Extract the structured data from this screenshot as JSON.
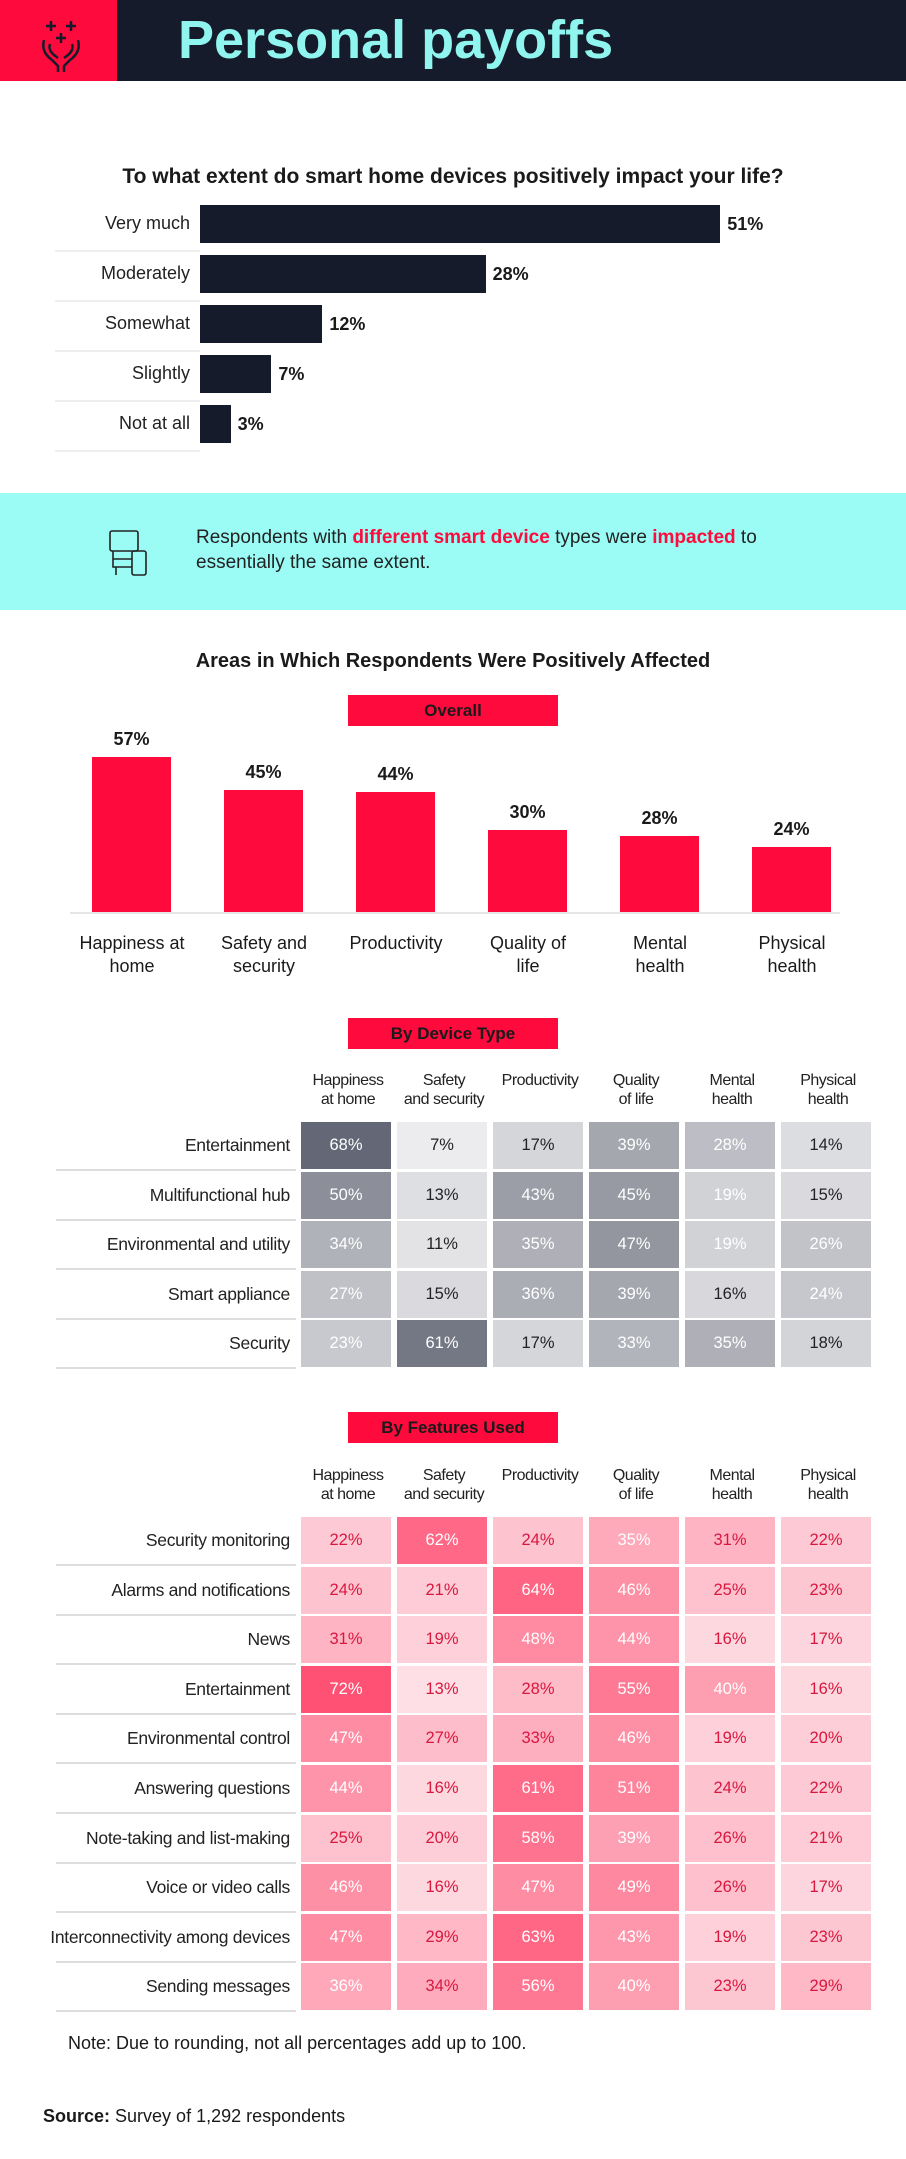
{
  "header": {
    "title": "Personal payoffs",
    "icon": "hands-with-plus-signs-icon"
  },
  "colors": {
    "navy": "#161b2b",
    "red": "#ff0a3c",
    "teal": "#9bfcf6",
    "title_teal": "#8ff5ee"
  },
  "chart_data": [
    {
      "type": "bar",
      "orientation": "horizontal",
      "title": "To what extent do smart home devices positively impact your life?",
      "categories": [
        "Very much",
        "Moderately",
        "Somewhat",
        "Slightly",
        "Not at all"
      ],
      "values": [
        51,
        28,
        12,
        7,
        3
      ],
      "labels": [
        "51%",
        "28%",
        "12%",
        "7%",
        "3%"
      ]
    },
    {
      "type": "bar",
      "title": "Areas in Which Respondents Were Positively Affected",
      "subtitle": "Overall",
      "categories": [
        "Happiness at home",
        "Safety and security",
        "Productivity",
        "Quality of life",
        "Mental health",
        "Physical health"
      ],
      "values": [
        57,
        45,
        44,
        30,
        28,
        24
      ],
      "labels": [
        "57%",
        "45%",
        "44%",
        "30%",
        "28%",
        "24%"
      ]
    },
    {
      "type": "heatmap",
      "title": "By Device Type",
      "columns": [
        "Happiness at home",
        "Safety and security",
        "Productivity",
        "Quality of life",
        "Mental health",
        "Physical health"
      ],
      "rows": [
        "Entertainment",
        "Multifunctional hub",
        "Environmental and utility",
        "Smart appliance",
        "Security"
      ],
      "values": [
        [
          68,
          7,
          17,
          39,
          28,
          14
        ],
        [
          50,
          13,
          43,
          45,
          19,
          15
        ],
        [
          34,
          11,
          35,
          47,
          19,
          26
        ],
        [
          27,
          15,
          36,
          39,
          16,
          24
        ],
        [
          23,
          61,
          17,
          33,
          35,
          18
        ]
      ]
    },
    {
      "type": "heatmap",
      "title": "By Features Used",
      "columns": [
        "Happiness at home",
        "Safety and security",
        "Productivity",
        "Quality of life",
        "Mental health",
        "Physical health"
      ],
      "rows": [
        "Security monitoring",
        "Alarms and notifications",
        "News",
        "Entertainment",
        "Environmental control",
        "Answering questions",
        "Note-taking and list-making",
        "Voice or video calls",
        "Interconnectivity among devices",
        "Sending messages"
      ],
      "values": [
        [
          22,
          62,
          24,
          35,
          31,
          22
        ],
        [
          24,
          21,
          64,
          46,
          25,
          23
        ],
        [
          31,
          19,
          48,
          44,
          16,
          17
        ],
        [
          72,
          13,
          28,
          55,
          40,
          16
        ],
        [
          47,
          27,
          33,
          46,
          19,
          20
        ],
        [
          44,
          16,
          61,
          51,
          24,
          22
        ],
        [
          25,
          20,
          58,
          39,
          26,
          21
        ],
        [
          46,
          16,
          47,
          49,
          26,
          17
        ],
        [
          47,
          29,
          63,
          43,
          19,
          23
        ],
        [
          36,
          34,
          56,
          40,
          23,
          29
        ]
      ]
    }
  ],
  "callout": {
    "icon": "devices-icon",
    "pre": "Respondents with ",
    "hl1": "different smart device",
    "mid": " types were ",
    "hl2": "impacted",
    "post": " to",
    "line2": "essentially the same extent."
  },
  "note": "Note: Due to rounding, not all percentages add up to 100.",
  "source": {
    "label": "Source:",
    "text": " Survey of 1,292 respondents"
  }
}
